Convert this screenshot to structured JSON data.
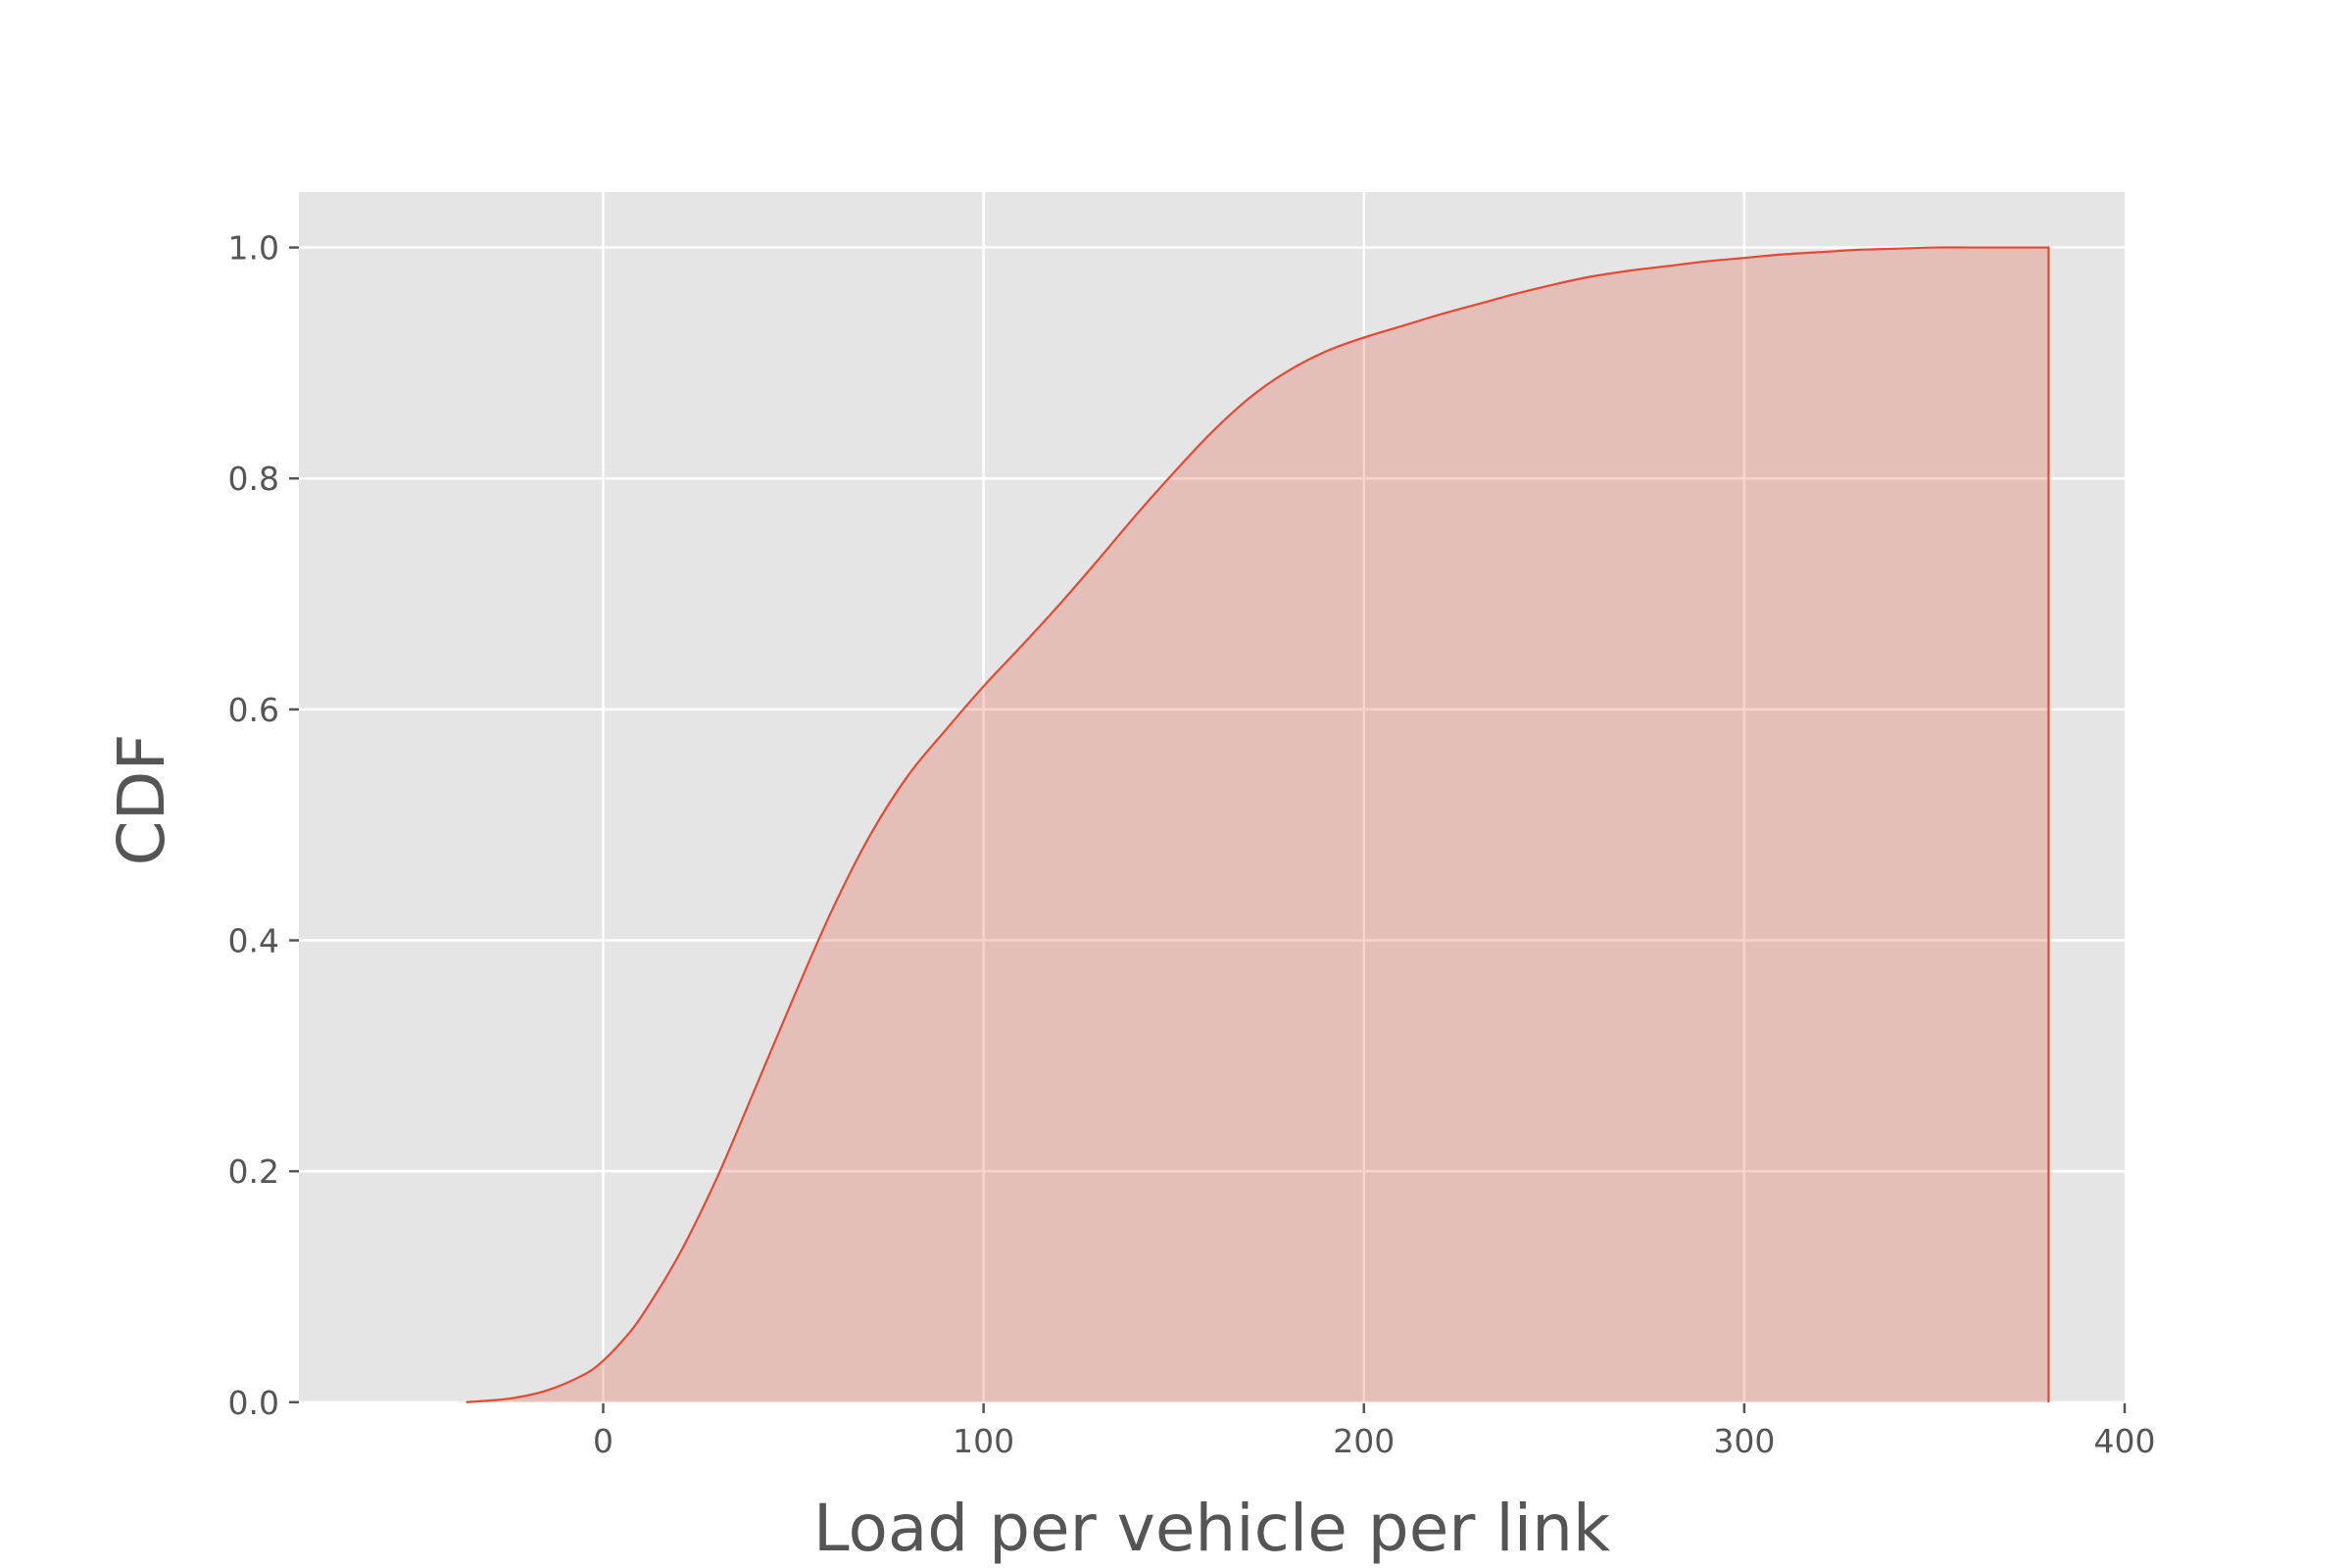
{
  "chart_data": {
    "type": "area",
    "title": "",
    "xlabel": "Load per vehicle per link",
    "ylabel": "CDF",
    "xlim": [
      -80,
      400
    ],
    "ylim": [
      -0.001,
      1.048
    ],
    "x_ticks": [
      0,
      100,
      200,
      300,
      400
    ],
    "y_ticks": [
      0.0,
      0.2,
      0.4,
      0.6,
      0.8,
      1.0
    ],
    "x_tick_labels": [
      "0",
      "100",
      "200",
      "300",
      "400"
    ],
    "y_tick_labels": [
      "0.0",
      "0.2",
      "0.4",
      "0.6",
      "0.8",
      "1.0"
    ],
    "grid": true,
    "colors": {
      "line": "#e24a33",
      "fill": "#e24a33",
      "plot_background": "#e5e5e5",
      "grid": "#ffffff",
      "text": "#555555"
    },
    "series": [
      {
        "x": [
          -36,
          -25,
          -15,
          -5,
          0,
          5,
          10,
          20,
          30,
          40,
          50,
          60,
          70,
          80,
          90,
          100,
          110,
          120,
          130,
          140,
          150,
          160,
          170,
          180,
          190,
          200,
          210,
          220,
          230,
          240,
          250,
          260,
          270,
          280,
          290,
          300,
          310,
          320,
          330,
          340,
          350,
          360,
          370,
          380
        ],
        "y": [
          0.0,
          0.003,
          0.01,
          0.024,
          0.036,
          0.053,
          0.074,
          0.128,
          0.195,
          0.272,
          0.35,
          0.425,
          0.49,
          0.542,
          0.582,
          0.62,
          0.655,
          0.691,
          0.729,
          0.768,
          0.805,
          0.84,
          0.87,
          0.893,
          0.91,
          0.922,
          0.932,
          0.942,
          0.951,
          0.96,
          0.968,
          0.975,
          0.98,
          0.984,
          0.988,
          0.991,
          0.994,
          0.996,
          0.998,
          0.999,
          1.0,
          1.0,
          1.0,
          1.0
        ]
      }
    ]
  }
}
